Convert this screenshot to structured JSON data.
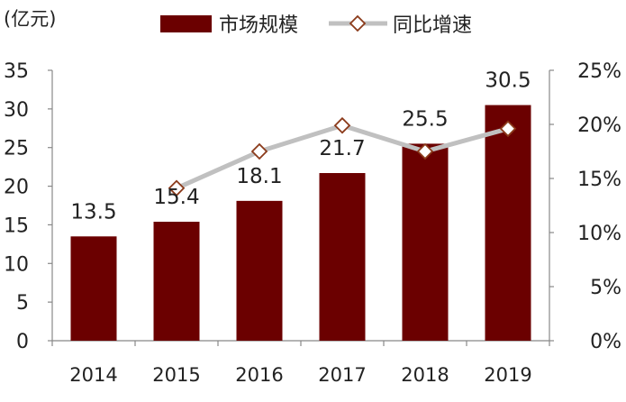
{
  "chart_data": {
    "type": "bar",
    "unit_label": "(亿元)",
    "categories": [
      "2014",
      "2015",
      "2016",
      "2017",
      "2018",
      "2019"
    ],
    "series": [
      {
        "name": "市场规模",
        "kind": "bar",
        "axis": "left",
        "color": "#6b0000",
        "values": [
          13.5,
          15.4,
          18.1,
          21.7,
          25.5,
          30.5
        ],
        "labels": [
          "13.5",
          "15.4",
          "18.1",
          "21.7",
          "25.5",
          "30.5"
        ]
      },
      {
        "name": "同比增速",
        "kind": "line",
        "axis": "right",
        "color": "#c0c0c0",
        "marker": "diamond",
        "marker_color": "#8b3a1a",
        "values": [
          null,
          14.1,
          17.5,
          19.9,
          17.5,
          19.6
        ]
      }
    ],
    "left_axis": {
      "min": 0,
      "max": 35,
      "ticks": [
        "0",
        "5",
        "10",
        "15",
        "20",
        "25",
        "30",
        "35"
      ]
    },
    "right_axis": {
      "min": 0,
      "max": 25,
      "ticks": [
        "0%",
        "5%",
        "10%",
        "15%",
        "20%",
        "25%"
      ]
    },
    "legend_position": "top",
    "grid": false
  }
}
